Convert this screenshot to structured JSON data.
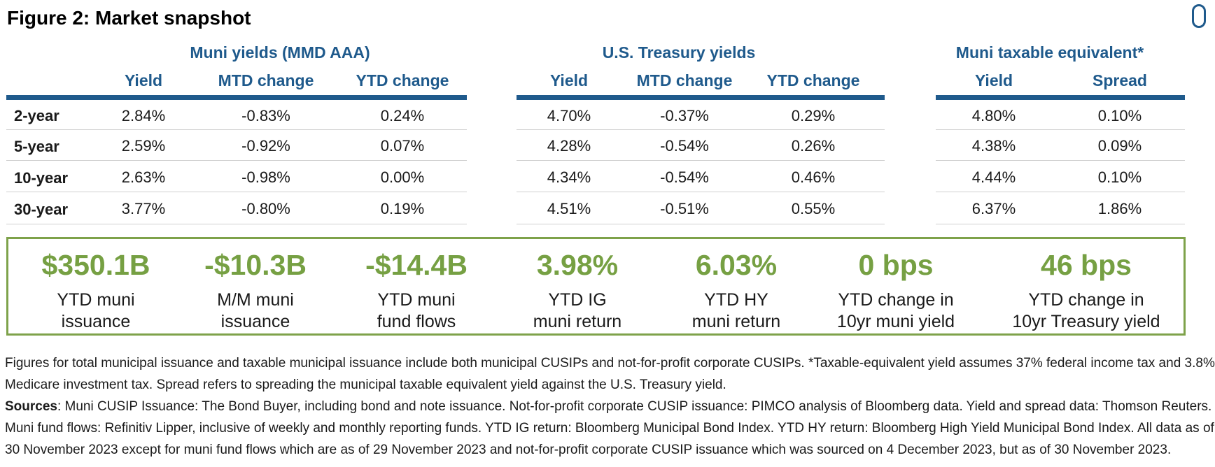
{
  "title": "Figure 2: Market snapshot",
  "groups": {
    "muni": "Muni yields (MMD AAA)",
    "treasury": "U.S. Treasury yields",
    "taxable": "Muni taxable equivalent*"
  },
  "columns": {
    "muni": [
      "Yield",
      "MTD change",
      "YTD change"
    ],
    "treasury": [
      "Yield",
      "MTD change",
      "YTD change"
    ],
    "taxable": [
      "Yield",
      "Spread"
    ]
  },
  "rows": [
    {
      "label": "2-year",
      "muni": [
        "2.84%",
        "-0.83%",
        "0.24%"
      ],
      "treasury": [
        "4.70%",
        "-0.37%",
        "0.29%"
      ],
      "taxable": [
        "4.80%",
        "0.10%"
      ]
    },
    {
      "label": "5-year",
      "muni": [
        "2.59%",
        "-0.92%",
        "0.07%"
      ],
      "treasury": [
        "4.28%",
        "-0.54%",
        "0.26%"
      ],
      "taxable": [
        "4.38%",
        "0.09%"
      ]
    },
    {
      "label": "10-year",
      "muni": [
        "2.63%",
        "-0.98%",
        "0.00%"
      ],
      "treasury": [
        "4.34%",
        "-0.54%",
        "0.46%"
      ],
      "taxable": [
        "4.44%",
        "0.10%"
      ]
    },
    {
      "label": "30-year",
      "muni": [
        "3.77%",
        "-0.80%",
        "0.19%"
      ],
      "treasury": [
        "4.51%",
        "-0.51%",
        "0.55%"
      ],
      "taxable": [
        "6.37%",
        "1.86%"
      ]
    }
  ],
  "stats": [
    {
      "value": "$350.1B",
      "label_1": "YTD muni",
      "label_2": "issuance"
    },
    {
      "value": "-$10.3B",
      "label_1": "M/M muni",
      "label_2": "issuance"
    },
    {
      "value": "-$14.4B",
      "label_1": "YTD muni",
      "label_2": "fund flows"
    },
    {
      "value": "3.98%",
      "label_1": "YTD IG",
      "label_2": "muni return"
    },
    {
      "value": "6.03%",
      "label_1": "YTD HY",
      "label_2": "muni return"
    },
    {
      "value": "0 bps",
      "label_1": "YTD change in",
      "label_2": "10yr muni yield"
    },
    {
      "value": "46 bps",
      "label_1": "YTD change in",
      "label_2": "10yr Treasury yield"
    }
  ],
  "footnote": {
    "line1": "Figures for total municipal issuance and taxable municipal issuance include both municipal CUSIPs and not-for-profit corporate CUSIPs. *Taxable-equivalent yield assumes 37% federal income tax and 3.8%",
    "line2": "Medicare investment tax. Spread refers to spreading the municipal taxable equivalent yield against the U.S. Treasury yield.",
    "sources_label": "Sources",
    "line3": ": Muni CUSIP Issuance: The Bond Buyer, including bond and note issuance. Not-for-profit corporate CUSIP issuance: PIMCO analysis of Bloomberg data. Yield and spread data: Thomson Reuters.",
    "line4": "Muni fund flows: Refinitiv Lipper, inclusive of weekly and monthly reporting funds. YTD IG return: Bloomberg Municipal Bond Index. YTD HY return: Bloomberg High Yield Municipal Bond Index. All data as of",
    "line5": "30 November 2023 except for muni fund flows which are as of 29 November 2023 and not-for-profit corporate CUSIP issuance which was sourced on 4 December 2023, but as of 30 November 2023."
  },
  "colors": {
    "header_blue": "#1f5a8c",
    "stat_green": "#76a043",
    "box_border": "#7ea24a"
  }
}
